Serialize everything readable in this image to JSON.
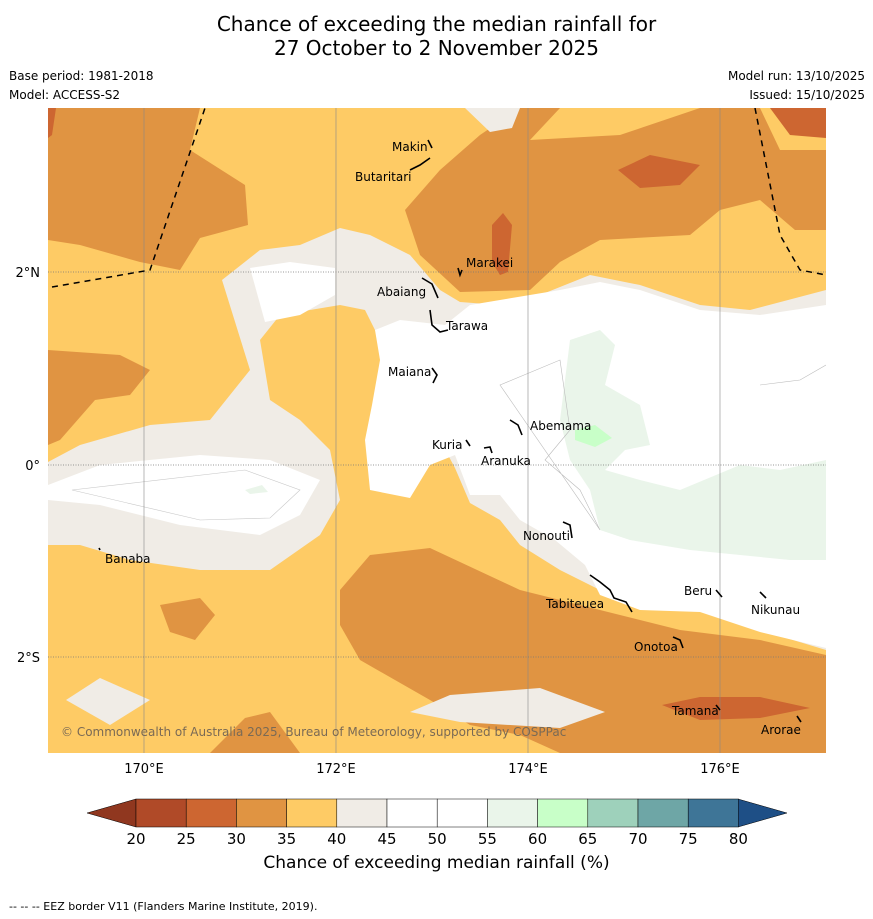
{
  "title_line1": "Chance of exceeding the median rainfall for",
  "title_line2": "27 October to 2 November 2025",
  "base_period": "Base period: 1981-2018",
  "model": "Model: ACCESS-S2",
  "model_run": "Model run: 13/10/2025",
  "issued": "Issued: 15/10/2025",
  "copyright": "© Commonwealth of Australia 2025, Bureau of Meteorology, supported by COSPPac",
  "footer": "--  --  -- EEZ border V11 (Flanders Marine Institute, 2019).",
  "axes": {
    "lat_ticks": [
      "2°N",
      "0°",
      "2°S"
    ],
    "lon_ticks": [
      "170°E",
      "172°E",
      "174°E",
      "176°E"
    ]
  },
  "places": [
    {
      "name": "Makin"
    },
    {
      "name": "Butaritari"
    },
    {
      "name": "Marakei"
    },
    {
      "name": "Abaiang"
    },
    {
      "name": "Tarawa"
    },
    {
      "name": "Maiana"
    },
    {
      "name": "Abemama"
    },
    {
      "name": "Kuria"
    },
    {
      "name": "Aranuka"
    },
    {
      "name": "Nonouti"
    },
    {
      "name": "Banaba"
    },
    {
      "name": "Beru"
    },
    {
      "name": "Tabiteuea"
    },
    {
      "name": "Nikunau"
    },
    {
      "name": "Onotoa"
    },
    {
      "name": "Tamana"
    },
    {
      "name": "Arorae"
    }
  ],
  "colorbar": {
    "label": "Chance of exceeding median rainfall (%)",
    "ticks": [
      "20",
      "25",
      "30",
      "35",
      "40",
      "45",
      "50",
      "55",
      "60",
      "65",
      "70",
      "75",
      "80"
    ],
    "colors": [
      "#b04a28",
      "#cd6631",
      "#e09442",
      "#fecb65",
      "#f0ece6",
      "#ffffff",
      "#ffffff",
      "#eaf5ea",
      "#c8ffc8",
      "#9ed1bb",
      "#6ea6a6",
      "#3e7597"
    ],
    "under_color": "#90371f",
    "over_color": "#1e4f86"
  },
  "legend_colors": {
    "c25": "#cd6631",
    "c30": "#e09442",
    "c35": "#fecb65",
    "c40": "#f0ece6",
    "c50": "#ffffff",
    "c55": "#eaf5ea",
    "c60": "#c8ffc8"
  }
}
